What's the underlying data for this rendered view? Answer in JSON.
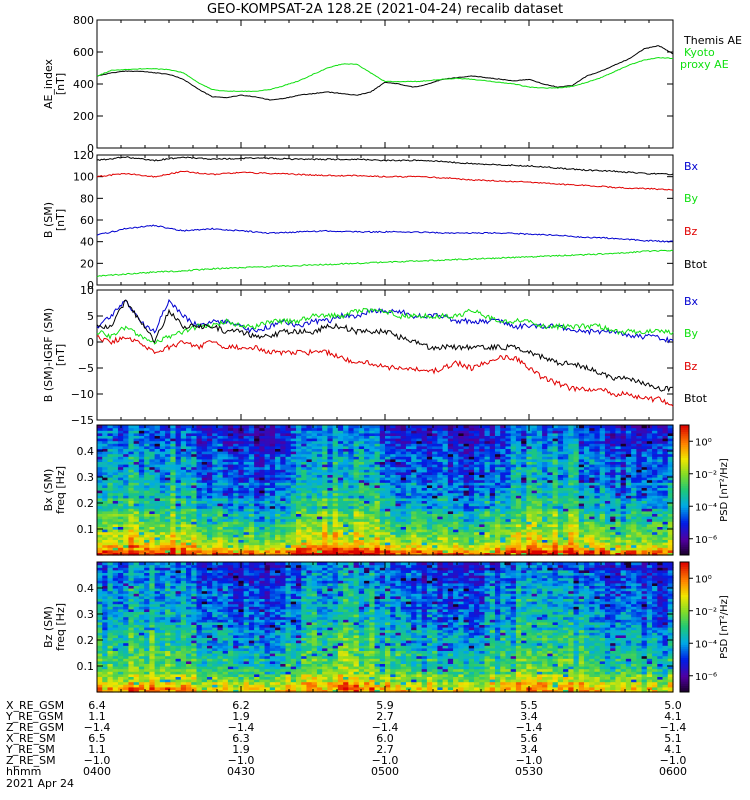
{
  "title": "GEO-KOMPSAT-2A 128.2E (2021-04-24) recalib dataset",
  "colors": {
    "black": "#000000",
    "red": "#e00000",
    "green": "#10e010",
    "blue": "#0000d0"
  },
  "chart_data": [
    {
      "type": "line",
      "panel": "ae",
      "ylabel": [
        "AE_index",
        "[nT]"
      ],
      "ylim": [
        0,
        800
      ],
      "yticks": [
        0,
        200,
        400,
        600,
        800
      ],
      "xlim_hours": [
        4.0,
        6.0
      ],
      "legend_placement": "right",
      "series": [
        {
          "name": "Themis AE",
          "color": "#000000",
          "x": [
            4.0,
            4.05,
            4.1,
            4.15,
            4.2,
            4.25,
            4.3,
            4.35,
            4.4,
            4.45,
            4.5,
            4.55,
            4.6,
            4.65,
            4.7,
            4.75,
            4.8,
            4.85,
            4.9,
            4.95,
            5.0,
            5.05,
            5.1,
            5.15,
            5.2,
            5.25,
            5.3,
            5.35,
            5.4,
            5.45,
            5.5,
            5.55,
            5.6,
            5.65,
            5.7,
            5.75,
            5.8,
            5.85,
            5.9,
            5.95,
            6.0
          ],
          "y": [
            450,
            470,
            480,
            480,
            470,
            460,
            430,
            370,
            320,
            315,
            330,
            320,
            300,
            310,
            330,
            340,
            350,
            340,
            330,
            350,
            410,
            400,
            380,
            400,
            430,
            440,
            450,
            440,
            430,
            420,
            430,
            400,
            380,
            390,
            450,
            480,
            520,
            560,
            620,
            640,
            590
          ]
        },
        {
          "name": "Kyoto proxy AE",
          "color": "#10e010",
          "x": [
            4.0,
            4.05,
            4.1,
            4.15,
            4.2,
            4.25,
            4.3,
            4.35,
            4.4,
            4.45,
            4.5,
            4.55,
            4.6,
            4.65,
            4.7,
            4.75,
            4.8,
            4.85,
            4.9,
            4.95,
            5.0,
            5.05,
            5.1,
            5.15,
            5.2,
            5.25,
            5.3,
            5.35,
            5.4,
            5.45,
            5.5,
            5.55,
            5.6,
            5.65,
            5.7,
            5.75,
            5.8,
            5.85,
            5.9,
            5.95,
            6.0
          ],
          "y": [
            450,
            485,
            490,
            495,
            495,
            490,
            470,
            410,
            365,
            355,
            355,
            355,
            365,
            390,
            420,
            460,
            500,
            525,
            525,
            470,
            415,
            415,
            415,
            420,
            430,
            435,
            430,
            420,
            410,
            400,
            380,
            375,
            375,
            385,
            410,
            440,
            480,
            520,
            550,
            565,
            560
          ]
        }
      ]
    },
    {
      "type": "line",
      "panel": "b_sm",
      "ylabel": [
        "B (SM)",
        "[nT]"
      ],
      "ylim": [
        0,
        120
      ],
      "yticks": [
        0,
        20,
        40,
        60,
        80,
        100,
        120
      ],
      "xlim_hours": [
        4.0,
        6.0
      ],
      "legend_placement": "right",
      "series": [
        {
          "name": "Bx",
          "color": "#0000d0",
          "x": [
            4.0,
            4.1,
            4.2,
            4.3,
            4.4,
            4.5,
            4.6,
            4.7,
            4.8,
            4.9,
            5.0,
            5.1,
            5.2,
            5.3,
            5.4,
            5.5,
            5.6,
            5.7,
            5.8,
            5.9,
            6.0
          ],
          "y": [
            46,
            52,
            55,
            50,
            52,
            50,
            48,
            49,
            50,
            49,
            49,
            49,
            48,
            48,
            48,
            47,
            46,
            44,
            43,
            41,
            40
          ]
        },
        {
          "name": "By",
          "color": "#10e010",
          "x": [
            4.0,
            4.1,
            4.2,
            4.3,
            4.4,
            4.5,
            4.6,
            4.7,
            4.8,
            4.9,
            5.0,
            5.1,
            5.2,
            5.3,
            5.4,
            5.5,
            5.6,
            5.7,
            5.8,
            5.9,
            6.0
          ],
          "y": [
            8,
            10,
            12,
            13,
            15,
            16,
            17,
            18,
            19,
            20,
            21,
            22,
            23,
            24,
            25,
            26,
            27,
            28,
            29,
            31,
            32
          ]
        },
        {
          "name": "Bz",
          "color": "#e00000",
          "x": [
            4.0,
            4.1,
            4.2,
            4.3,
            4.4,
            4.5,
            4.6,
            4.7,
            4.8,
            4.9,
            5.0,
            5.1,
            5.2,
            5.3,
            5.4,
            5.5,
            5.6,
            5.7,
            5.8,
            5.9,
            6.0
          ],
          "y": [
            100,
            103,
            100,
            105,
            102,
            104,
            103,
            102,
            101,
            101,
            100,
            100,
            99,
            97,
            96,
            95,
            93,
            92,
            90,
            89,
            88
          ]
        },
        {
          "name": "Btot",
          "color": "#000000",
          "x": [
            4.0,
            4.1,
            4.2,
            4.3,
            4.4,
            4.5,
            4.6,
            4.7,
            4.8,
            4.9,
            5.0,
            5.1,
            5.2,
            5.3,
            5.4,
            5.5,
            5.6,
            5.7,
            5.8,
            5.9,
            6.0
          ],
          "y": [
            115,
            118,
            115,
            118,
            116,
            117,
            117,
            116,
            116,
            116,
            115,
            115,
            114,
            112,
            111,
            110,
            108,
            106,
            105,
            103,
            102
          ]
        }
      ]
    },
    {
      "type": "line",
      "panel": "b_sm_igrf",
      "ylabel": [
        "B (SM)-IGRF (SM)",
        "[nT]"
      ],
      "ylim": [
        -15,
        10
      ],
      "yticks": [
        -15,
        -10,
        -5,
        0,
        5,
        10
      ],
      "xlim_hours": [
        4.0,
        6.0
      ],
      "legend_placement": "right",
      "series": [
        {
          "name": "Bx",
          "color": "#0000d0",
          "x": [
            4.0,
            4.05,
            4.1,
            4.15,
            4.2,
            4.25,
            4.3,
            4.35,
            4.4,
            4.45,
            4.5,
            4.55,
            4.6,
            4.65,
            4.7,
            4.75,
            4.8,
            4.85,
            4.9,
            4.95,
            5.0,
            5.05,
            5.1,
            5.15,
            5.2,
            5.25,
            5.3,
            5.35,
            5.4,
            5.45,
            5.5,
            5.55,
            5.6,
            5.65,
            5.7,
            5.75,
            5.8,
            5.85,
            5.9,
            5.95,
            6.0
          ],
          "y": [
            3,
            5,
            8,
            4,
            2,
            8,
            5,
            3,
            4,
            4,
            3,
            2,
            3,
            4,
            3,
            4,
            4,
            5,
            5,
            6,
            6,
            6,
            5,
            5,
            5,
            4,
            4,
            4,
            4,
            3,
            3,
            3,
            3,
            2,
            2,
            2,
            2,
            1,
            1,
            1,
            0
          ]
        },
        {
          "name": "By",
          "color": "#10e010",
          "x": [
            4.0,
            4.05,
            4.1,
            4.15,
            4.2,
            4.25,
            4.3,
            4.35,
            4.4,
            4.45,
            4.5,
            4.55,
            4.6,
            4.65,
            4.7,
            4.75,
            4.8,
            4.85,
            4.9,
            4.95,
            5.0,
            5.05,
            5.1,
            5.15,
            5.2,
            5.25,
            5.3,
            5.35,
            5.4,
            5.45,
            5.5,
            5.55,
            5.6,
            5.65,
            5.7,
            5.75,
            5.8,
            5.85,
            5.9,
            5.95,
            6.0
          ],
          "y": [
            2,
            1,
            3,
            1,
            0,
            1,
            2,
            3,
            3,
            4,
            3,
            3,
            4,
            4,
            4,
            5,
            5,
            5,
            6,
            6,
            6,
            5,
            5,
            5,
            5,
            5,
            6,
            5,
            4,
            4,
            4,
            3,
            3,
            3,
            3,
            3,
            2,
            2,
            2,
            2,
            2
          ]
        },
        {
          "name": "Bz",
          "color": "#e00000",
          "x": [
            4.0,
            4.05,
            4.1,
            4.15,
            4.2,
            4.25,
            4.3,
            4.35,
            4.4,
            4.45,
            4.5,
            4.55,
            4.6,
            4.65,
            4.7,
            4.75,
            4.8,
            4.85,
            4.9,
            4.95,
            5.0,
            5.05,
            5.1,
            5.15,
            5.2,
            5.25,
            5.3,
            5.35,
            5.4,
            5.45,
            5.5,
            5.55,
            5.6,
            5.65,
            5.7,
            5.75,
            5.8,
            5.85,
            5.9,
            5.95,
            6.0
          ],
          "y": [
            1,
            0,
            1,
            0,
            -2,
            -1,
            0,
            -1,
            0,
            -1,
            -1,
            -1,
            -2,
            -2,
            -2,
            -2,
            -2,
            -3,
            -4,
            -4,
            -5,
            -5,
            -5,
            -6,
            -5,
            -4,
            -5,
            -4,
            -3,
            -3,
            -5,
            -7,
            -8,
            -9,
            -9,
            -9,
            -10,
            -10,
            -11,
            -11,
            -12
          ]
        },
        {
          "name": "Btot",
          "color": "#000000",
          "x": [
            4.0,
            4.05,
            4.1,
            4.15,
            4.2,
            4.25,
            4.3,
            4.35,
            4.4,
            4.45,
            4.5,
            4.55,
            4.6,
            4.65,
            4.7,
            4.75,
            4.8,
            4.85,
            4.9,
            4.95,
            5.0,
            5.05,
            5.1,
            5.15,
            5.2,
            5.25,
            5.3,
            5.35,
            5.4,
            5.45,
            5.5,
            5.55,
            5.6,
            5.65,
            5.7,
            5.75,
            5.8,
            5.85,
            5.9,
            5.95,
            6.0
          ],
          "y": [
            3,
            3,
            8,
            4,
            0,
            6,
            3,
            3,
            3,
            2,
            2,
            1,
            1,
            2,
            2,
            2,
            3,
            3,
            2,
            2,
            2,
            1,
            0,
            -1,
            -1,
            -1,
            -1,
            -1,
            -1,
            -1,
            -2,
            -3,
            -4,
            -4,
            -5,
            -6,
            -7,
            -7,
            -8,
            -9,
            -9
          ]
        }
      ]
    },
    {
      "type": "heatmap",
      "panel": "bx_spec",
      "ylabel": [
        "Bx (SM)",
        "freq [Hz]"
      ],
      "ylim": [
        0,
        0.5
      ],
      "yticks": [
        0.1,
        0.2,
        0.3,
        0.4
      ],
      "xlim_hours": [
        4.0,
        6.0
      ],
      "colorbar": {
        "label": "PSD [nT²/Hz]",
        "ticks": [
          "10⁰",
          "10⁻²",
          "10⁻⁴",
          "10⁻⁶"
        ],
        "log_range": [
          -7,
          1
        ]
      },
      "psd_log10_profile": {
        "freq": [
          0.01,
          0.025,
          0.05,
          0.075,
          0.1,
          0.15,
          0.2,
          0.3,
          0.4,
          0.5
        ],
        "log10_psd": [
          0.5,
          -0.5,
          -1.5,
          -2.0,
          -2.5,
          -3.0,
          -3.5,
          -4.0,
          -4.5,
          -5.0
        ]
      }
    },
    {
      "type": "heatmap",
      "panel": "bz_spec",
      "ylabel": [
        "Bz (SM)",
        "freq [Hz]"
      ],
      "ylim": [
        0,
        0.5
      ],
      "yticks": [
        0.1,
        0.2,
        0.3,
        0.4
      ],
      "xlim_hours": [
        4.0,
        6.0
      ],
      "colorbar": {
        "label": "PSD [nT²/Hz]",
        "ticks": [
          "10⁰",
          "10⁻²",
          "10⁻⁴",
          "10⁻⁶"
        ],
        "log_range": [
          -7,
          1
        ]
      },
      "psd_log10_profile": {
        "freq": [
          0.01,
          0.025,
          0.05,
          0.075,
          0.1,
          0.15,
          0.2,
          0.3,
          0.4,
          0.5
        ],
        "log10_psd": [
          -0.5,
          -1.0,
          -1.8,
          -2.3,
          -2.7,
          -3.2,
          -3.5,
          -4.0,
          -4.3,
          -4.8
        ]
      }
    }
  ],
  "ephemeris": {
    "labels": [
      "X_RE_GSM",
      "Y_RE_GSM",
      "Z_RE_GSM",
      "X_RE_SM",
      "Y_RE_SM",
      "Z_RE_SM",
      "hhmm",
      "2021 Apr 24"
    ],
    "columns": [
      [
        "6.4",
        "1.1",
        "-1.4",
        "6.5",
        "1.1",
        "-1.0",
        "0400"
      ],
      [
        "6.2",
        "1.9",
        "-1.4",
        "6.3",
        "1.9",
        "-1.0",
        "0430"
      ],
      [
        "5.9",
        "2.7",
        "-1.4",
        "6.0",
        "2.7",
        "-1.0",
        "0500"
      ],
      [
        "5.5",
        "3.4",
        "-1.4",
        "5.6",
        "3.4",
        "-1.0",
        "0530"
      ],
      [
        "5.0",
        "4.1",
        "-1.4",
        "5.1",
        "4.1",
        "-1.0",
        "0600"
      ]
    ]
  }
}
